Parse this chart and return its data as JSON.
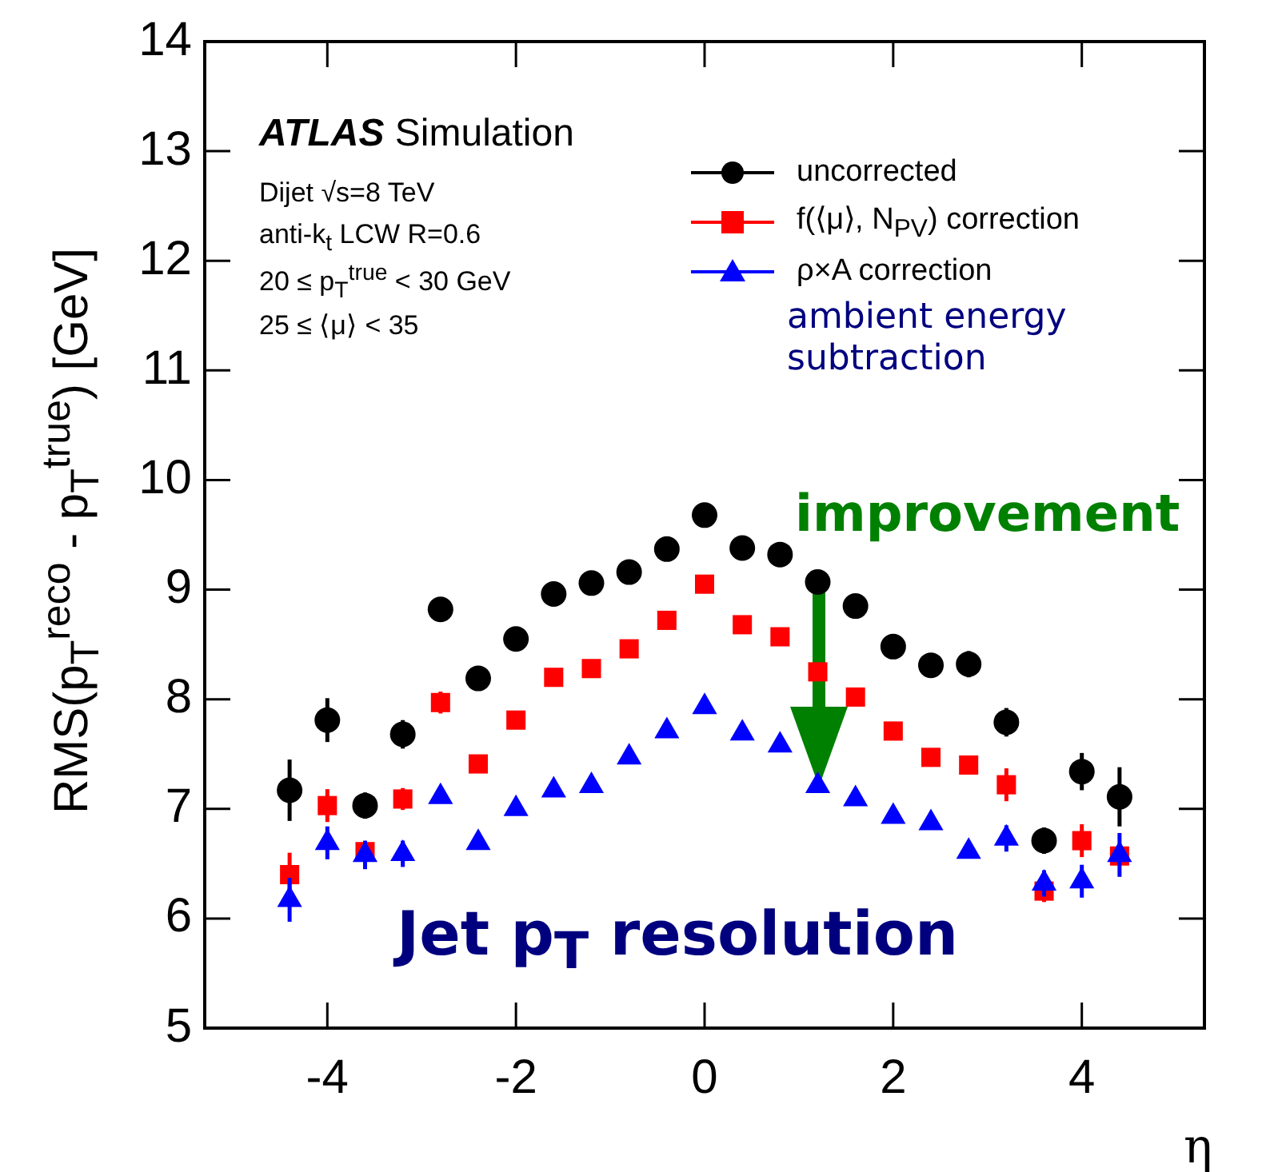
{
  "chart_data": {
    "type": "scatter",
    "ylabel": "RMS(p$_{T}$$^{reco}$ - p$_{T}$$^{true}$) [GeV]",
    "xlabel": "η",
    "xlim": [
      -5.3,
      5.3
    ],
    "xticks": [
      -4,
      -2,
      0,
      2,
      4
    ],
    "ylim": [
      5,
      14
    ],
    "yticks": [
      5,
      6,
      7,
      8,
      9,
      10,
      11,
      12,
      13,
      14
    ],
    "legend": "top right",
    "grid": false,
    "annotations": [
      "ATLAS Simulation",
      "Dijet √s=8 TeV",
      "anti-k$_{t}$ LCW R=0.6",
      "20 ≤ p$_{T}$$^{true}$ < 30 GeV",
      "25 ≤ ⟨μ⟩ < 35",
      "ambient energy subtraction",
      "improvement",
      "Jet p$_{T}$ resolution"
    ],
    "x": [
      -4.4,
      -4,
      -3.6,
      -3.2,
      -2.8,
      -2.4,
      -2,
      -1.6,
      -1.2,
      -0.8,
      -0.4,
      0,
      0.4,
      0.8,
      1.2,
      1.6,
      2,
      2.4,
      2.8,
      3.2,
      3.6,
      4,
      4.4
    ],
    "series": [
      {
        "name": "uncorrected",
        "color": "#000000",
        "marker": "circle",
        "values": [
          7.17,
          7.81,
          7.03,
          7.68,
          8.82,
          8.19,
          8.55,
          8.96,
          9.06,
          9.16,
          9.37,
          9.68,
          9.38,
          9.32,
          9.07,
          8.85,
          8.48,
          8.31,
          8.32,
          7.79,
          6.71,
          7.34,
          7.11
        ],
        "errors": [
          0.28,
          0.2,
          0.12,
          0.13,
          0.1,
          null,
          null,
          null,
          null,
          null,
          null,
          null,
          null,
          null,
          null,
          null,
          null,
          null,
          0.12,
          0.13,
          0.12,
          0.17,
          0.27
        ]
      },
      {
        "name": "f(⟨μ⟩, N$_{PV}$) correction",
        "color": "#ff0000",
        "marker": "square",
        "values": [
          6.4,
          7.03,
          6.61,
          7.09,
          7.97,
          7.41,
          7.81,
          8.2,
          8.28,
          8.46,
          8.72,
          9.05,
          8.68,
          8.57,
          8.25,
          8.02,
          7.71,
          7.47,
          7.4,
          7.22,
          6.25,
          6.71,
          6.57
        ],
        "errors": [
          0.2,
          0.15,
          null,
          0.1,
          0.1,
          null,
          null,
          null,
          null,
          null,
          null,
          null,
          null,
          null,
          null,
          null,
          null,
          null,
          0.08,
          0.15,
          0.1,
          0.15,
          null
        ]
      },
      {
        "name": "ρ×A correction",
        "color": "#0000ff",
        "marker": "triangle",
        "values": [
          6.17,
          6.69,
          6.58,
          6.59,
          7.11,
          6.69,
          7.0,
          7.17,
          7.21,
          7.47,
          7.71,
          7.93,
          7.69,
          7.58,
          7.21,
          7.09,
          6.93,
          6.87,
          6.61,
          6.73,
          6.32,
          6.34,
          6.58
        ],
        "errors": [
          0.2,
          0.15,
          0.13,
          0.12,
          null,
          null,
          null,
          null,
          null,
          null,
          null,
          null,
          null,
          null,
          null,
          null,
          null,
          null,
          null,
          0.12,
          0.12,
          0.15,
          0.2
        ]
      }
    ]
  }
}
